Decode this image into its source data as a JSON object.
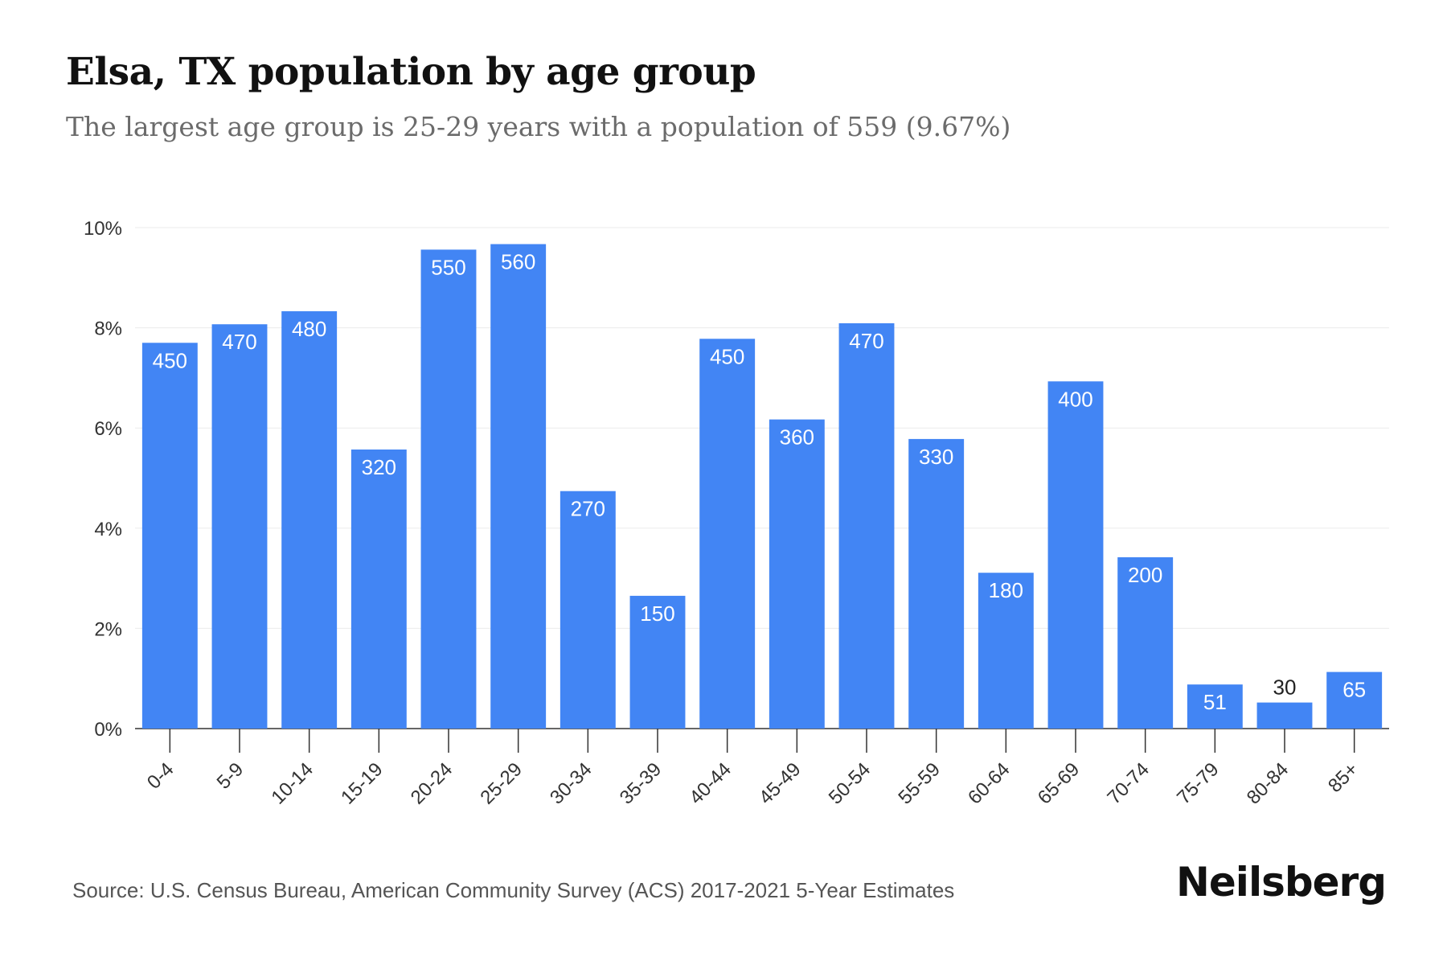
{
  "title": "Elsa, TX population by age group",
  "subtitle": "The largest age group is 25-29 years with a population of 559 (9.67%)",
  "source": "Source: U.S. Census Bureau, American Community Survey (ACS) 2017-2021 5-Year Estimates",
  "brand": "Neilsberg",
  "colors": {
    "bar": "#4285F4",
    "grid": "#ebebeb",
    "axis": "#333333",
    "label_inside": "#ffffff",
    "label_outside": "#222222"
  },
  "chart_data": {
    "type": "bar",
    "categories": [
      "0-4",
      "5-9",
      "10-14",
      "15-19",
      "20-24",
      "25-29",
      "30-34",
      "35-39",
      "40-44",
      "45-49",
      "50-54",
      "55-59",
      "60-64",
      "65-69",
      "70-74",
      "75-79",
      "80-84",
      "85+"
    ],
    "values": [
      7.7,
      8.07,
      8.33,
      5.57,
      9.56,
      9.67,
      4.74,
      2.65,
      7.78,
      6.17,
      8.09,
      5.78,
      3.11,
      6.93,
      3.42,
      0.88,
      0.52,
      1.13
    ],
    "data_labels": [
      "450",
      "470",
      "480",
      "320",
      "550",
      "560",
      "270",
      "150",
      "450",
      "360",
      "470",
      "330",
      "180",
      "400",
      "200",
      "51",
      "30",
      "65"
    ],
    "yticks": [
      "0%",
      "2%",
      "4%",
      "6%",
      "8%",
      "10%"
    ],
    "ylim": [
      0,
      10
    ],
    "grid": true
  }
}
